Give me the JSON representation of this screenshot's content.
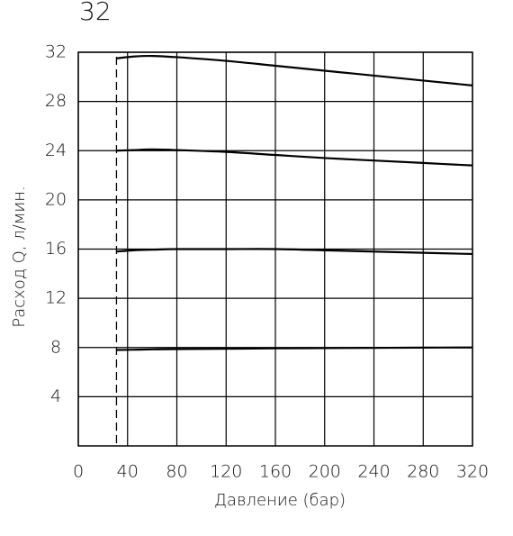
{
  "heading": "32",
  "chart_data": {
    "type": "line",
    "x": [
      31,
      45,
      60,
      80,
      120,
      160,
      200,
      240,
      280,
      320
    ],
    "series": [
      {
        "color": "#000000",
        "values": [
          31.5,
          31.65,
          31.7,
          31.6,
          31.3,
          30.9,
          30.5,
          30.1,
          29.7,
          29.3
        ]
      },
      {
        "color": "#000000",
        "values": [
          24.0,
          24.05,
          24.1,
          24.05,
          23.9,
          23.65,
          23.4,
          23.2,
          23.0,
          22.8
        ]
      },
      {
        "color": "#000000",
        "values": [
          15.8,
          15.9,
          15.95,
          16.0,
          16.0,
          16.0,
          15.9,
          15.8,
          15.7,
          15.6
        ]
      },
      {
        "color": "#000000",
        "values": [
          7.8,
          7.82,
          7.85,
          7.87,
          7.9,
          7.93,
          7.95,
          7.97,
          7.99,
          8.0
        ]
      }
    ],
    "reference_x": 31,
    "xlabel": "Давление (бар)",
    "ylabel": "Расход Q, л/мин.",
    "xlim": [
      0,
      320
    ],
    "ylim": [
      0,
      32
    ],
    "xticks": [
      0,
      40,
      80,
      120,
      160,
      200,
      240,
      280,
      320
    ],
    "yticks": [
      4,
      8,
      12,
      16,
      20,
      24,
      28,
      32
    ],
    "grid": true
  }
}
